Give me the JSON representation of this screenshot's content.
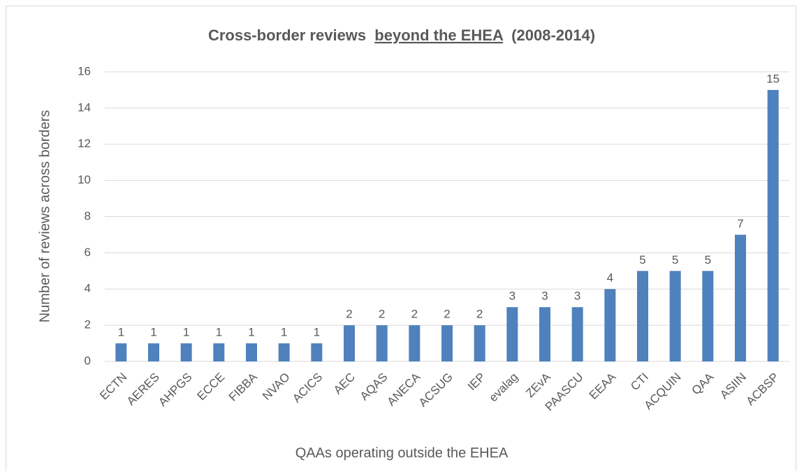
{
  "chart_data": {
    "type": "bar",
    "title": [
      "Cross-border reviews",
      "beyond the EHEA",
      "(2008-2014)"
    ],
    "x_label": "QAAs operating outside the EHEA",
    "y_label": "Number of reviews across borders",
    "categories": [
      "ECTN",
      "AERES",
      "AHPGS",
      "ECCE",
      "FIBBA",
      "NVAO",
      "ACICS",
      "AEC",
      "AQAS",
      "ANECA",
      "ACSUG",
      "IEP",
      "evalag",
      "ZEvA",
      "PAASCU",
      "EEAA",
      "CTI",
      "ACQUIN",
      "QAA",
      "ASIIN",
      "ACBSP"
    ],
    "values": [
      1,
      1,
      1,
      1,
      1,
      1,
      1,
      2,
      2,
      2,
      2,
      2,
      3,
      3,
      3,
      4,
      5,
      5,
      5,
      7,
      15
    ],
    "color": "#4f81bd",
    "ylim": [
      0,
      16
    ],
    "yticks": [
      0,
      2,
      4,
      6,
      8,
      10,
      12,
      14,
      16
    ],
    "grid": true
  }
}
